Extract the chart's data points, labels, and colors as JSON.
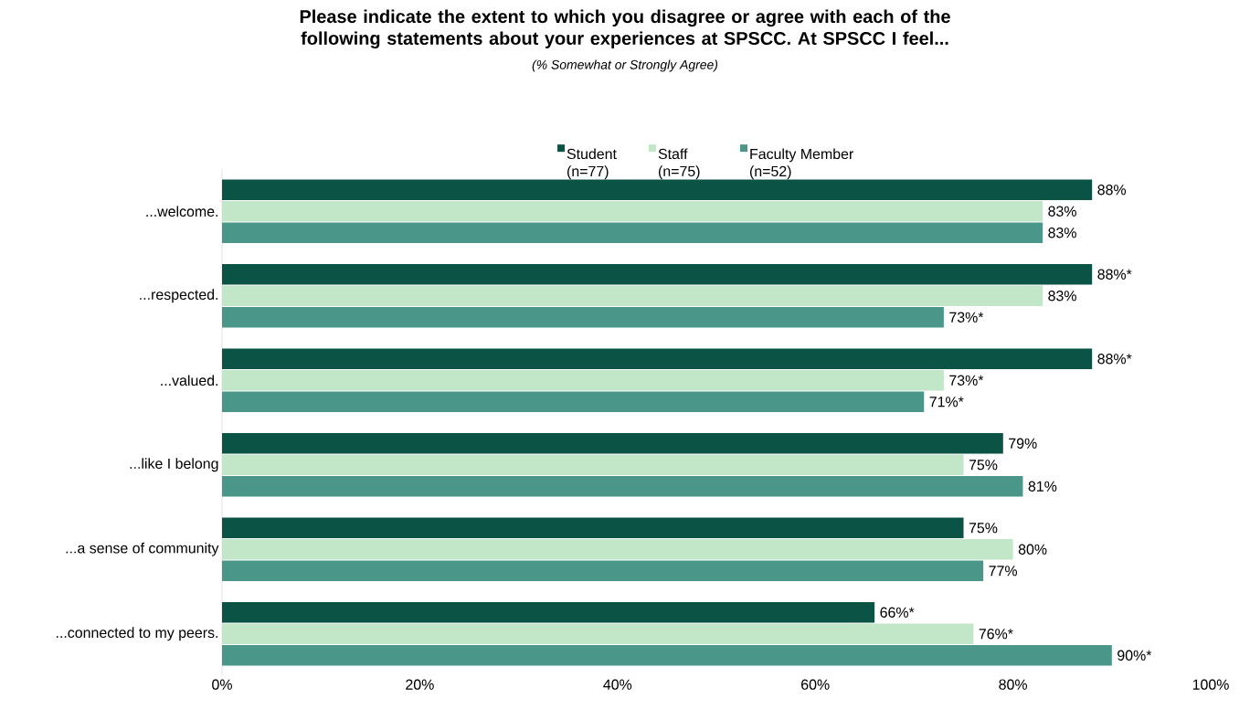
{
  "chart_data": {
    "type": "bar",
    "orientation": "horizontal",
    "title": "Please indicate the extent to which you disagree or agree with each of the following statements about your experiences at SPSCC.  At SPSCC I feel...",
    "subtitle": "(% Somewhat or Strongly Agree)",
    "categories": [
      "...welcome.",
      "...respected.",
      "...valued.",
      "...like I belong",
      "...a sense of community",
      "...connected to my peers."
    ],
    "series": [
      {
        "name": "Student (n=77)",
        "color": "#0b5345",
        "values": [
          88,
          88,
          88,
          79,
          75,
          66
        ],
        "value_labels": [
          "88%",
          "88%*",
          "88%*",
          "79%",
          "75%",
          "66%*"
        ]
      },
      {
        "name": "Staff (n=75)",
        "color": "#c2e6c8",
        "values": [
          83,
          83,
          73,
          75,
          80,
          76
        ],
        "value_labels": [
          "83%",
          "83%",
          "73%*",
          "75%",
          "80%",
          "76%*"
        ]
      },
      {
        "name": "Faculty Member (n=52)",
        "color": "#4a978a",
        "values": [
          83,
          73,
          71,
          81,
          77,
          90
        ],
        "value_labels": [
          "83%",
          "73%*",
          "71%*",
          "81%",
          "77%",
          "90%*"
        ]
      }
    ],
    "xlim": [
      0,
      100
    ],
    "xticks": [
      {
        "value": 0,
        "label": "0%"
      },
      {
        "value": 20,
        "label": "20%"
      },
      {
        "value": 40,
        "label": "40%"
      },
      {
        "value": 60,
        "label": "60%"
      },
      {
        "value": 80,
        "label": "80%"
      },
      {
        "value": 100,
        "label": "100%"
      }
    ],
    "legend": "top"
  }
}
